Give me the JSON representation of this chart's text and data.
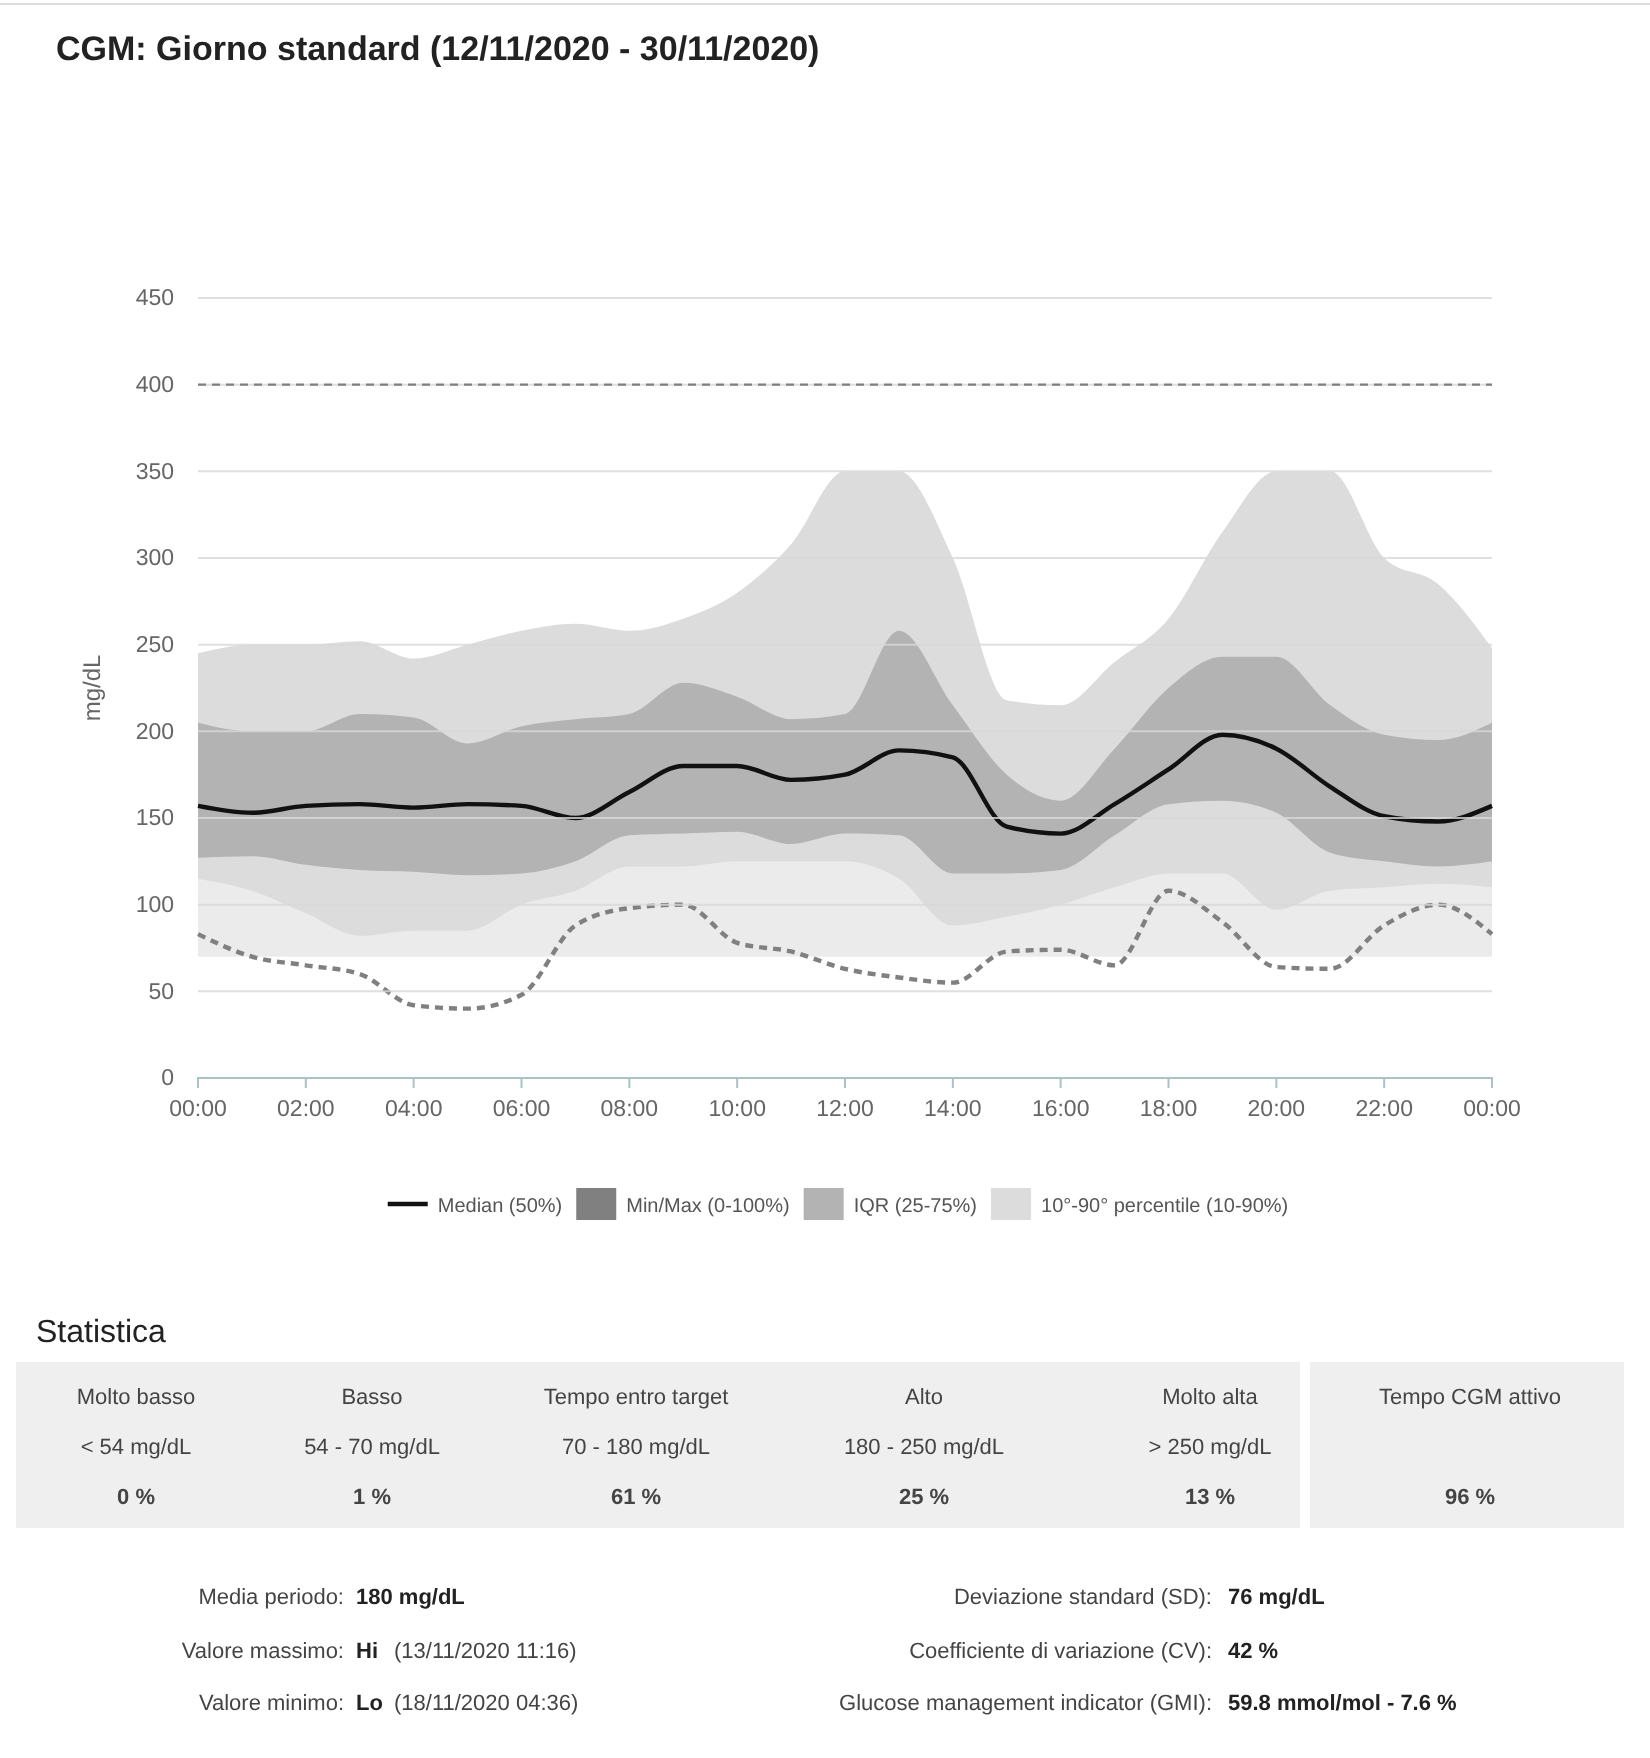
{
  "chart_data": {
    "type": "line",
    "title": "CGM: Giorno standard (12/11/2020 - 30/11/2020)",
    "ylabel": "mg/dL",
    "x": [
      0,
      1,
      2,
      3,
      4,
      5,
      6,
      7,
      8,
      9,
      10,
      11,
      12,
      13,
      14,
      15,
      16,
      17,
      18,
      19,
      20,
      21,
      22,
      23,
      24
    ],
    "xlim": [
      0,
      24
    ],
    "xticks": [
      {
        "value": 0,
        "label": "00:00"
      },
      {
        "value": 2,
        "label": "02:00"
      },
      {
        "value": 4,
        "label": "04:00"
      },
      {
        "value": 6,
        "label": "06:00"
      },
      {
        "value": 8,
        "label": "08:00"
      },
      {
        "value": 10,
        "label": "10:00"
      },
      {
        "value": 12,
        "label": "12:00"
      },
      {
        "value": 14,
        "label": "14:00"
      },
      {
        "value": 16,
        "label": "16:00"
      },
      {
        "value": 18,
        "label": "18:00"
      },
      {
        "value": 20,
        "label": "20:00"
      },
      {
        "value": 22,
        "label": "22:00"
      },
      {
        "value": 24,
        "label": "00:00"
      }
    ],
    "ylim": [
      0,
      450
    ],
    "yticks": [
      0,
      50,
      100,
      150,
      200,
      250,
      300,
      350,
      400,
      450
    ],
    "grid": "y",
    "legend": "bottom",
    "bands": [
      {
        "axis": "y",
        "from": 70,
        "to": 180,
        "color": "#ebebeb"
      }
    ],
    "ref_lines": [
      {
        "axis": "y",
        "value": 400,
        "color": "#808080",
        "line_style": "dashed"
      }
    ],
    "series": [
      {
        "name": "10°-90° percentile (10-90%)",
        "type": "area",
        "color": "#dcdcdc",
        "values": [
          null,
          null,
          null,
          null,
          null,
          null,
          null,
          null,
          null,
          null,
          null,
          null,
          null,
          null,
          null,
          null,
          null,
          null,
          null,
          null,
          null,
          null,
          null,
          null,
          null
        ],
        "upper": [
          245,
          250,
          250,
          252,
          242,
          250,
          258,
          262,
          258,
          265,
          280,
          308,
          350,
          350,
          300,
          218,
          215,
          240,
          265,
          315,
          350,
          350,
          300,
          285,
          248
        ],
        "lower": [
          115,
          108,
          95,
          82,
          85,
          85,
          100,
          108,
          122,
          122,
          125,
          125,
          125,
          115,
          88,
          93,
          100,
          110,
          118,
          118,
          97,
          108,
          110,
          112,
          110
        ]
      },
      {
        "name": "IQR (25-75%)",
        "type": "area",
        "color": "#b3b3b3",
        "values": [
          null,
          null,
          null,
          null,
          null,
          null,
          null,
          null,
          null,
          null,
          null,
          null,
          null,
          null,
          null,
          null,
          null,
          null,
          null,
          null,
          null,
          null,
          null,
          null,
          null
        ],
        "upper": [
          205,
          200,
          200,
          210,
          208,
          193,
          203,
          207,
          210,
          228,
          220,
          207,
          210,
          258,
          215,
          175,
          160,
          190,
          225,
          243,
          243,
          215,
          198,
          195,
          205
        ],
        "lower": [
          127,
          128,
          123,
          120,
          119,
          117,
          118,
          125,
          140,
          141,
          142,
          135,
          141,
          140,
          118,
          118,
          120,
          140,
          158,
          160,
          153,
          130,
          125,
          122,
          125
        ]
      },
      {
        "name": "Min/Max (0-100%)",
        "type": "line",
        "line_style": "dashed",
        "color": "#808080",
        "values": [
          83,
          70,
          65,
          60,
          42,
          40,
          48,
          88,
          98,
          100,
          78,
          73,
          63,
          58,
          55,
          73,
          74,
          65,
          108,
          90,
          64,
          63,
          88,
          100,
          83
        ]
      },
      {
        "name": "Median (50%)",
        "color": "#111111",
        "values": [
          157,
          153,
          157,
          158,
          156,
          158,
          157,
          150,
          165,
          180,
          180,
          172,
          175,
          189,
          185,
          145,
          141,
          158,
          178,
          198,
          190,
          168,
          151,
          148,
          157
        ]
      }
    ],
    "annotations": [
      "Statistica",
      "Molto basso",
      "< 54 mg/dL",
      "0 %",
      "Basso",
      "54 - 70 mg/dL",
      "1 %",
      "Tempo entro target",
      "70 - 180 mg/dL",
      "61 %",
      "Alto",
      "180 - 250 mg/dL",
      "25 %",
      "Molto alta",
      "> 250 mg/dL",
      "13 %",
      "Tempo CGM attivo",
      "96 %",
      "Media periodo:",
      "180 mg/dL",
      "Valore massimo:",
      "Hi",
      "(13/11/2020 11:16)",
      "Valore minimo:",
      "Lo",
      "(18/11/2020 04:36)",
      "Deviazione standard (SD):",
      "76 mg/dL",
      "Coefficiente di variazione (CV):",
      "42 %",
      "Glucose management indicator (GMI):",
      "59.8 mmol/mol - 7.6 %"
    ]
  }
}
